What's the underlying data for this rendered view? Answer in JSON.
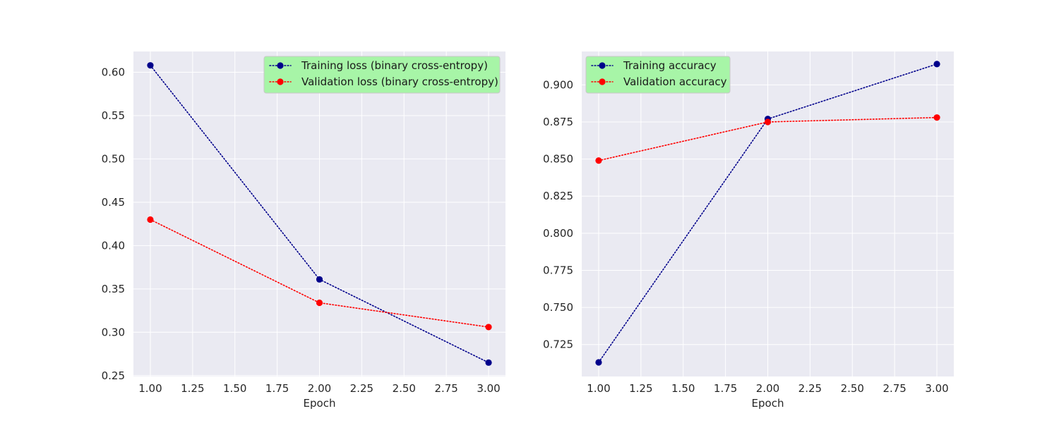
{
  "chart_data": [
    {
      "type": "line",
      "x": [
        1,
        2,
        3
      ],
      "xlabel": "Epoch",
      "ylabel": "",
      "xlim": [
        0.9,
        3.1
      ],
      "ylim": [
        0.249,
        0.624
      ],
      "xticks": [
        "1.00",
        "1.25",
        "1.50",
        "1.75",
        "2.00",
        "2.25",
        "2.50",
        "2.75",
        "3.00"
      ],
      "yticks": [
        "0.25",
        "0.30",
        "0.35",
        "0.40",
        "0.45",
        "0.50",
        "0.55",
        "0.60"
      ],
      "grid": true,
      "legend_position": "top-right",
      "legend_background": "#a7f5a7",
      "series": [
        {
          "name": "Training loss (binary cross-entropy)",
          "values": [
            0.608,
            0.361,
            0.265
          ],
          "color": "#00008b",
          "linestyle": "dotted",
          "marker": "circle"
        },
        {
          "name": "Validation loss (binary cross-entropy)",
          "values": [
            0.43,
            0.334,
            0.306
          ],
          "color": "#ff0000",
          "linestyle": "dotted",
          "marker": "circle"
        }
      ]
    },
    {
      "type": "line",
      "x": [
        1,
        2,
        3
      ],
      "xlabel": "Epoch",
      "ylabel": "",
      "xlim": [
        0.9,
        3.1
      ],
      "ylim": [
        0.7035,
        0.9225
      ],
      "xticks": [
        "1.00",
        "1.25",
        "1.50",
        "1.75",
        "2.00",
        "2.25",
        "2.50",
        "2.75",
        "3.00"
      ],
      "yticks": [
        "0.725",
        "0.750",
        "0.775",
        "0.800",
        "0.825",
        "0.850",
        "0.875",
        "0.900"
      ],
      "grid": true,
      "legend_position": "top-left",
      "legend_background": "#a7f5a7",
      "series": [
        {
          "name": "Training accuracy",
          "values": [
            0.713,
            0.877,
            0.914
          ],
          "color": "#00008b",
          "linestyle": "dotted",
          "marker": "circle"
        },
        {
          "name": "Validation accuracy",
          "values": [
            0.849,
            0.875,
            0.878
          ],
          "color": "#ff0000",
          "linestyle": "dotted",
          "marker": "circle"
        }
      ]
    }
  ]
}
